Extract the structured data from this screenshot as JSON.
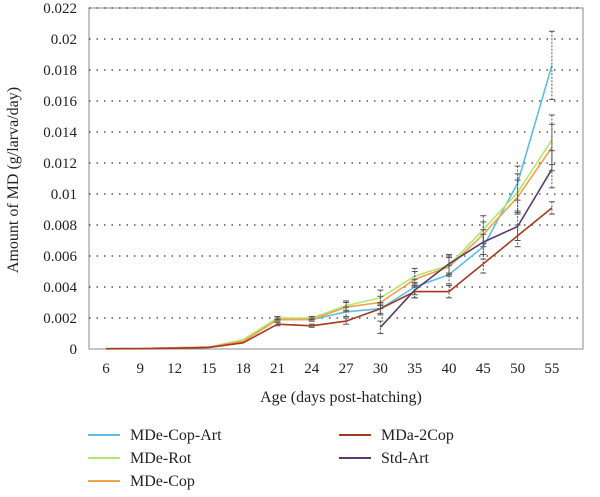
{
  "chart_data": {
    "type": "line",
    "title": "",
    "xlabel": "Age (days post-hatching)",
    "ylabel": "Amount of MD (g/larva/day)",
    "categories": [
      "6",
      "9",
      "12",
      "15",
      "18",
      "21",
      "24",
      "27",
      "30",
      "35",
      "40",
      "45",
      "50",
      "55"
    ],
    "ylim": [
      0,
      0.022
    ],
    "yticks": [
      0,
      0.002,
      0.004,
      0.006,
      0.008,
      0.01,
      0.012,
      0.014,
      0.016,
      0.018,
      0.02,
      0.022
    ],
    "ytick_labels": [
      "0",
      "0.002",
      "0.004",
      "0.006",
      "0.008",
      "0.01",
      "0.012",
      "0.014",
      "0.016",
      "0.018",
      "0.02",
      "0.022"
    ],
    "grid": "horizontal dotted",
    "legend_position": "bottom",
    "series": [
      {
        "name": "MDe-Cop-Art",
        "color": "#5bbfe6",
        "values": [
          2e-05,
          3e-05,
          8e-05,
          0.00012,
          0.0005,
          0.0019,
          0.0019,
          0.0024,
          0.0026,
          0.004,
          0.0048,
          0.0066,
          0.0107,
          0.0183
        ],
        "errors": [
          0,
          0,
          0,
          0,
          0,
          0.0001,
          0.0001,
          0.0003,
          0.0004,
          0.0005,
          0.0006,
          0.0008,
          0.0011,
          0.0022
        ]
      },
      {
        "name": "MDe-Rot",
        "color": "#b3e86a",
        "values": [
          2e-05,
          3e-05,
          8e-05,
          0.00012,
          0.0006,
          0.002,
          0.002,
          0.0028,
          0.0033,
          0.0047,
          0.0054,
          0.0077,
          0.0101,
          0.0135
        ],
        "errors": [
          0,
          0,
          0,
          0,
          0,
          0.0001,
          0.0001,
          0.0003,
          0.0005,
          0.0005,
          0.0006,
          0.0009,
          0.0012,
          0.0016
        ]
      },
      {
        "name": "MDe-Cop",
        "color": "#f5a04b",
        "values": [
          2e-05,
          3e-05,
          8e-05,
          0.00012,
          0.0005,
          0.0019,
          0.0019,
          0.0027,
          0.003,
          0.0045,
          0.0053,
          0.0074,
          0.0098,
          0.013
        ],
        "errors": [
          0,
          0,
          0,
          0,
          0,
          0.0001,
          0.0001,
          0.0003,
          0.0004,
          0.0005,
          0.0006,
          0.0008,
          0.0011,
          0.0015
        ]
      },
      {
        "name": "MDa-2Cop",
        "color": "#a53a1e",
        "values": [
          1e-05,
          2e-05,
          5e-05,
          0.0001,
          0.0004,
          0.0016,
          0.0015,
          0.0018,
          0.0026,
          0.0037,
          0.0037,
          0.0055,
          0.0073,
          0.0091
        ],
        "errors": [
          0,
          0,
          0,
          0,
          0,
          0.0001,
          0.0001,
          0.0002,
          0.0003,
          0.0004,
          0.0004,
          0.0006,
          0.0007,
          0.0004
        ]
      },
      {
        "name": "Std-Art",
        "color": "#5b3a6e",
        "values": [
          null,
          null,
          null,
          null,
          null,
          null,
          null,
          null,
          0.0014,
          0.0038,
          0.0055,
          0.0069,
          0.0079,
          0.0116
        ],
        "errors": [
          0,
          0,
          0,
          0,
          0,
          0,
          0,
          0,
          0.0004,
          0.0005,
          0.0006,
          0.0008,
          0.0009,
          0.0012
        ]
      }
    ]
  }
}
